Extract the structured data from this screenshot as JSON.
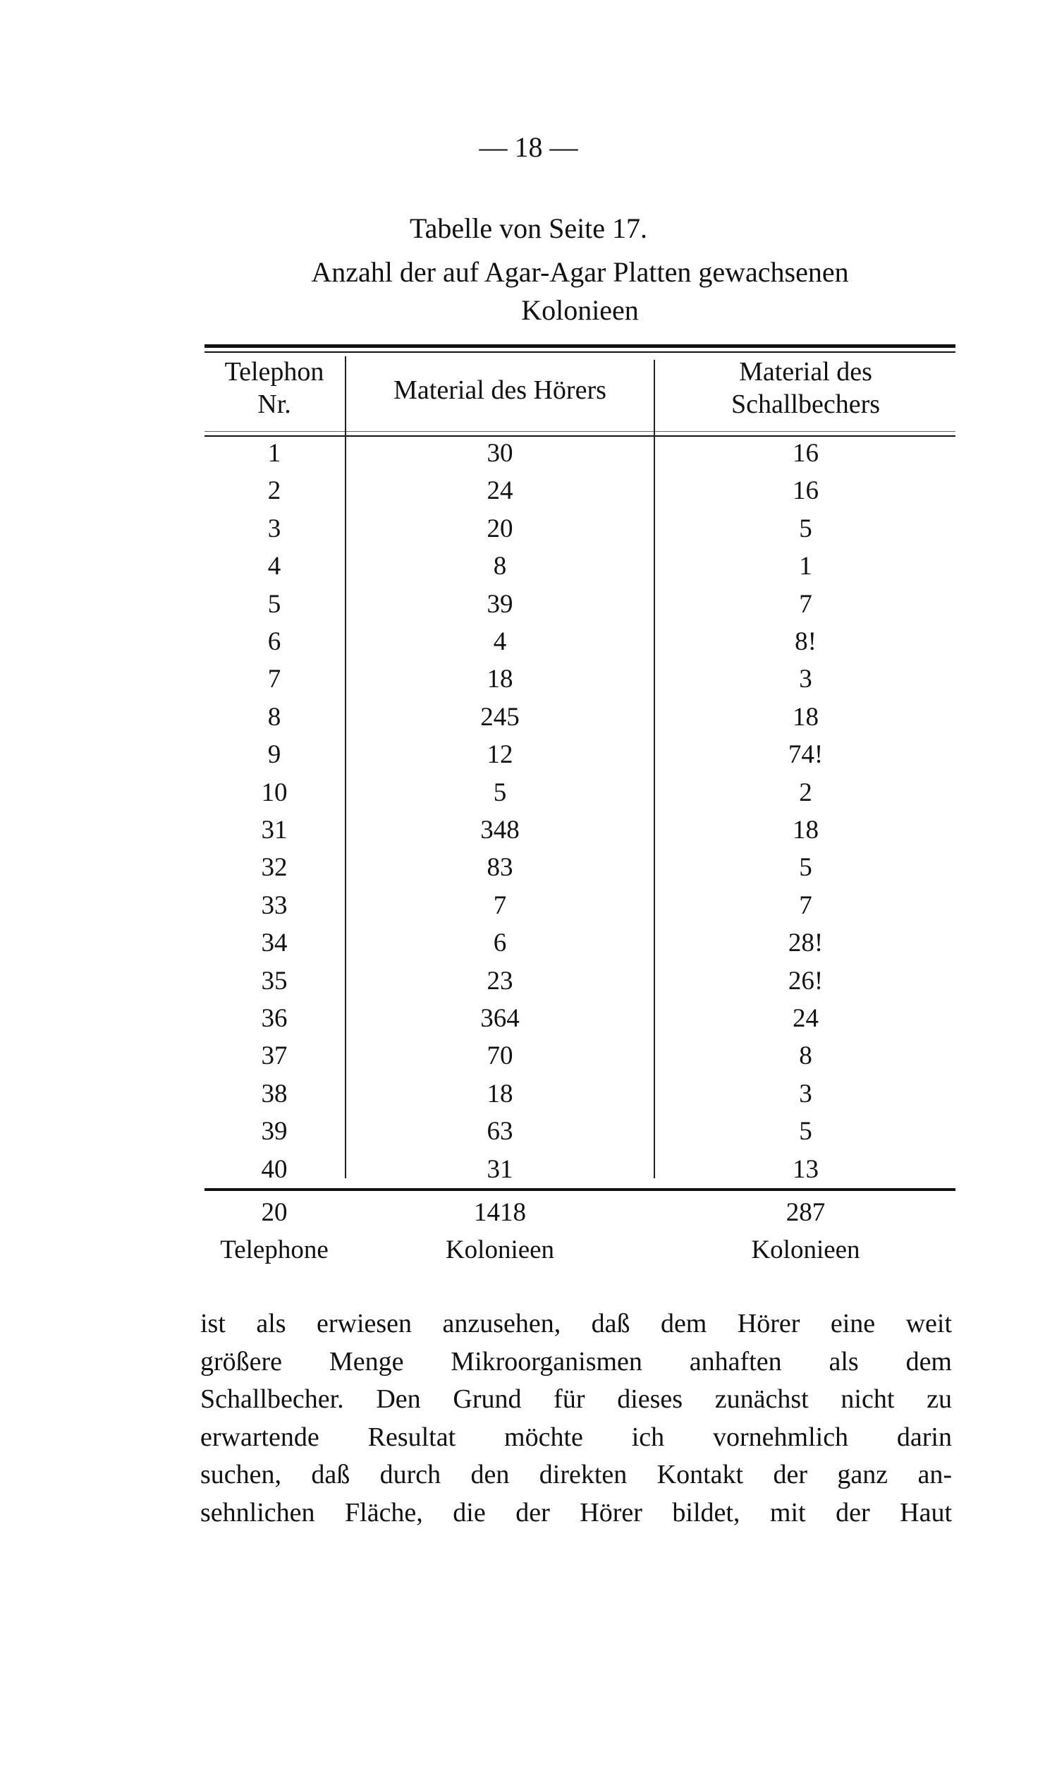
{
  "page_number": "— 18 —",
  "caption": {
    "line1": "Tabelle von Seite 17.",
    "line2": "Anzahl der auf Agar-Agar Platten gewachsenen",
    "line3": "Kolonieen"
  },
  "table": {
    "headers": [
      {
        "line1": "Telephon",
        "line2": "Nr."
      },
      {
        "line1": "Material des Hörers",
        "line2": ""
      },
      {
        "line1": "Material des",
        "line2": "Schallbechers"
      }
    ],
    "rows": [
      [
        "1",
        "30",
        "16"
      ],
      [
        "2",
        "24",
        "16"
      ],
      [
        "3",
        "20",
        "5"
      ],
      [
        "4",
        "8",
        "1"
      ],
      [
        "5",
        "39",
        "7"
      ],
      [
        "6",
        "4",
        "8!"
      ],
      [
        "7",
        "18",
        "3"
      ],
      [
        "8",
        "245",
        "18"
      ],
      [
        "9",
        "12",
        "74!"
      ],
      [
        "10",
        "5",
        "2"
      ],
      [
        "31",
        "348",
        "18"
      ],
      [
        "32",
        "83",
        "5"
      ],
      [
        "33",
        "7",
        "7"
      ],
      [
        "34",
        "6",
        "28!"
      ],
      [
        "35",
        "23",
        "26!"
      ],
      [
        "36",
        "364",
        "24"
      ],
      [
        "37",
        "70",
        "8"
      ],
      [
        "38",
        "18",
        "3"
      ],
      [
        "39",
        "63",
        "5"
      ],
      [
        "40",
        "31",
        "13"
      ]
    ],
    "totals": {
      "values": [
        "20",
        "1418",
        "287"
      ],
      "units": [
        "Telephone",
        "Kolonieen",
        "Kolonieen"
      ]
    }
  },
  "paragraph": [
    "ist als erwiesen anzusehen, daß dem Hörer eine weit",
    "größere Menge Mikroorganismen anhaften als dem",
    "Schallbecher. Den Grund für dieses zunächst nicht zu",
    "erwartende Resultat möchte ich vornehmlich darin",
    "suchen, daß durch den direkten Kontakt der ganz an-",
    "sehnlichen Fläche, die der Hörer bildet, mit der Haut"
  ]
}
